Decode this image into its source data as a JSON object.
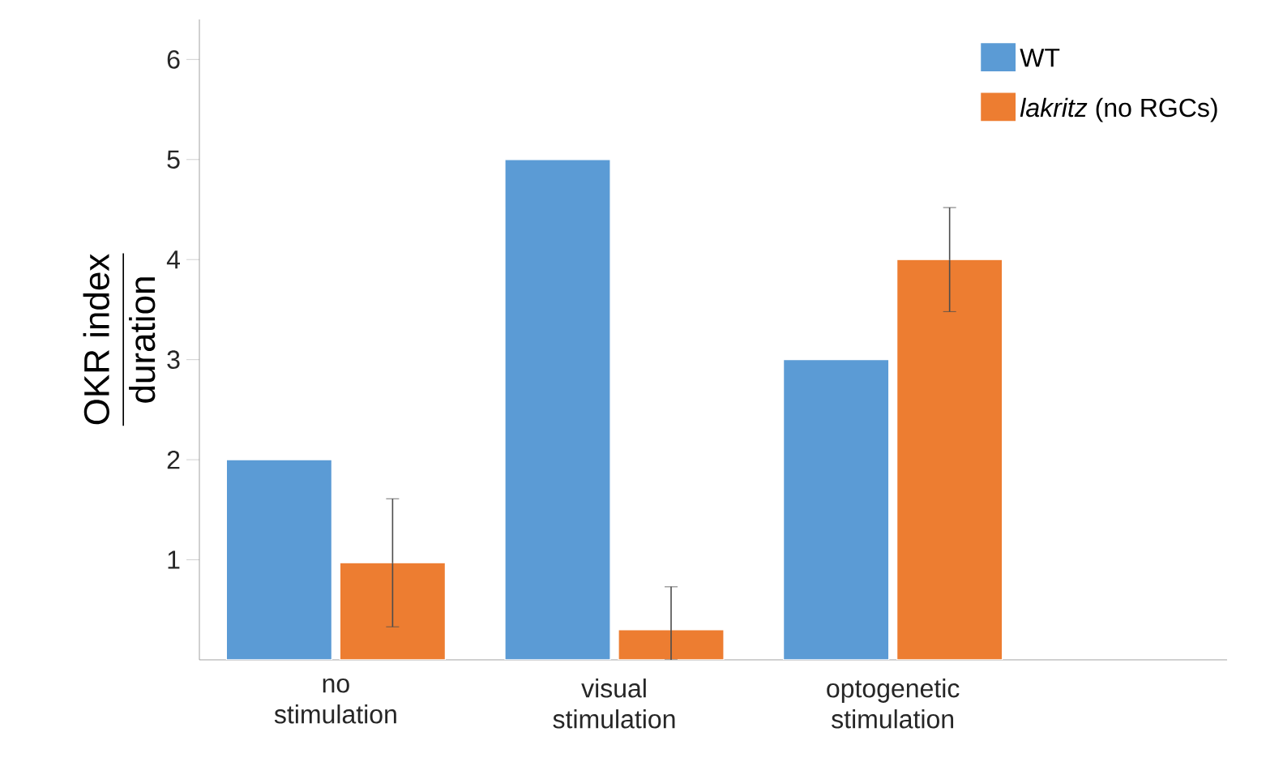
{
  "chart_data": {
    "type": "bar",
    "ylabel": "\\frac{\\mathrm{OKR\\ index}}{\\mathrm{duration}}",
    "categories": [
      "no stimulation",
      "visual stimulation",
      "optogenetic stimulation"
    ],
    "series": [
      {
        "name": "WT",
        "color": "#5b9bd5",
        "values": [
          2,
          5,
          3
        ]
      },
      {
        "name": "*lakritz* (no RGCs)",
        "color": "#ed7d31",
        "values": [
          0.97,
          0.3,
          4
        ],
        "errors": [
          0.64,
          [
            0,
            0.73
          ],
          0.52
        ]
      }
    ],
    "ylim": [
      0,
      6.4
    ],
    "yticks": [
      1,
      2,
      3,
      4,
      5,
      6
    ],
    "grid": false,
    "legend": "top right"
  }
}
